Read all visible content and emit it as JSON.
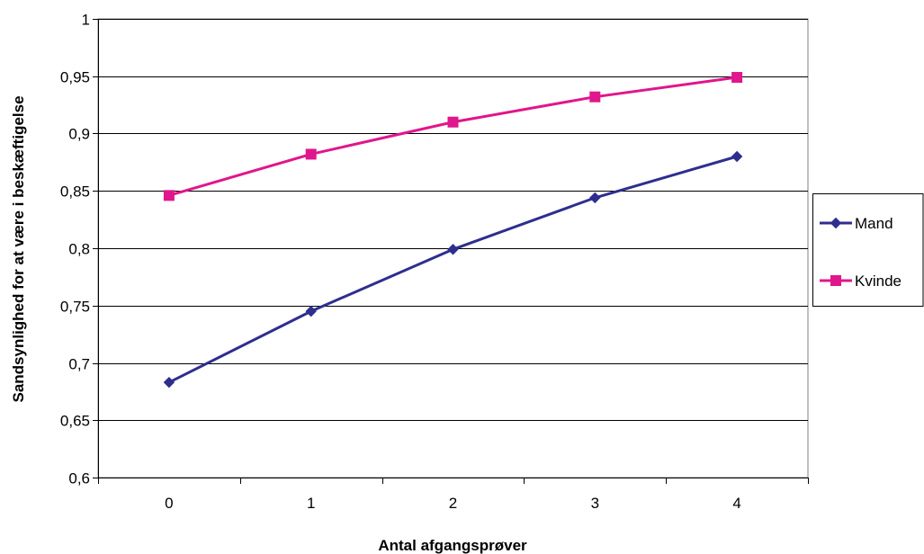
{
  "chart_data": {
    "type": "line",
    "categories": [
      "0",
      "1",
      "2",
      "3",
      "4"
    ],
    "xlabel": "Antal afgangsprøver",
    "ylabel": "Sandsynlighed for at være i beskæftigelse",
    "ylim": [
      0.6,
      1
    ],
    "ytick_step": 0.05,
    "ytick_labels": [
      "0,6",
      "0,65",
      "0,7",
      "0,75",
      "0,8",
      "0,85",
      "0,9",
      "0,95",
      "1"
    ],
    "grid": true,
    "legend_position": "right",
    "series": [
      {
        "name": "Mand",
        "values": [
          0.683,
          0.745,
          0.799,
          0.844,
          0.88
        ],
        "color": "#2e2e8f",
        "marker": "diamond"
      },
      {
        "name": "Kvinde",
        "values": [
          0.846,
          0.882,
          0.91,
          0.932,
          0.949
        ],
        "color": "#e0168c",
        "marker": "square"
      }
    ]
  }
}
